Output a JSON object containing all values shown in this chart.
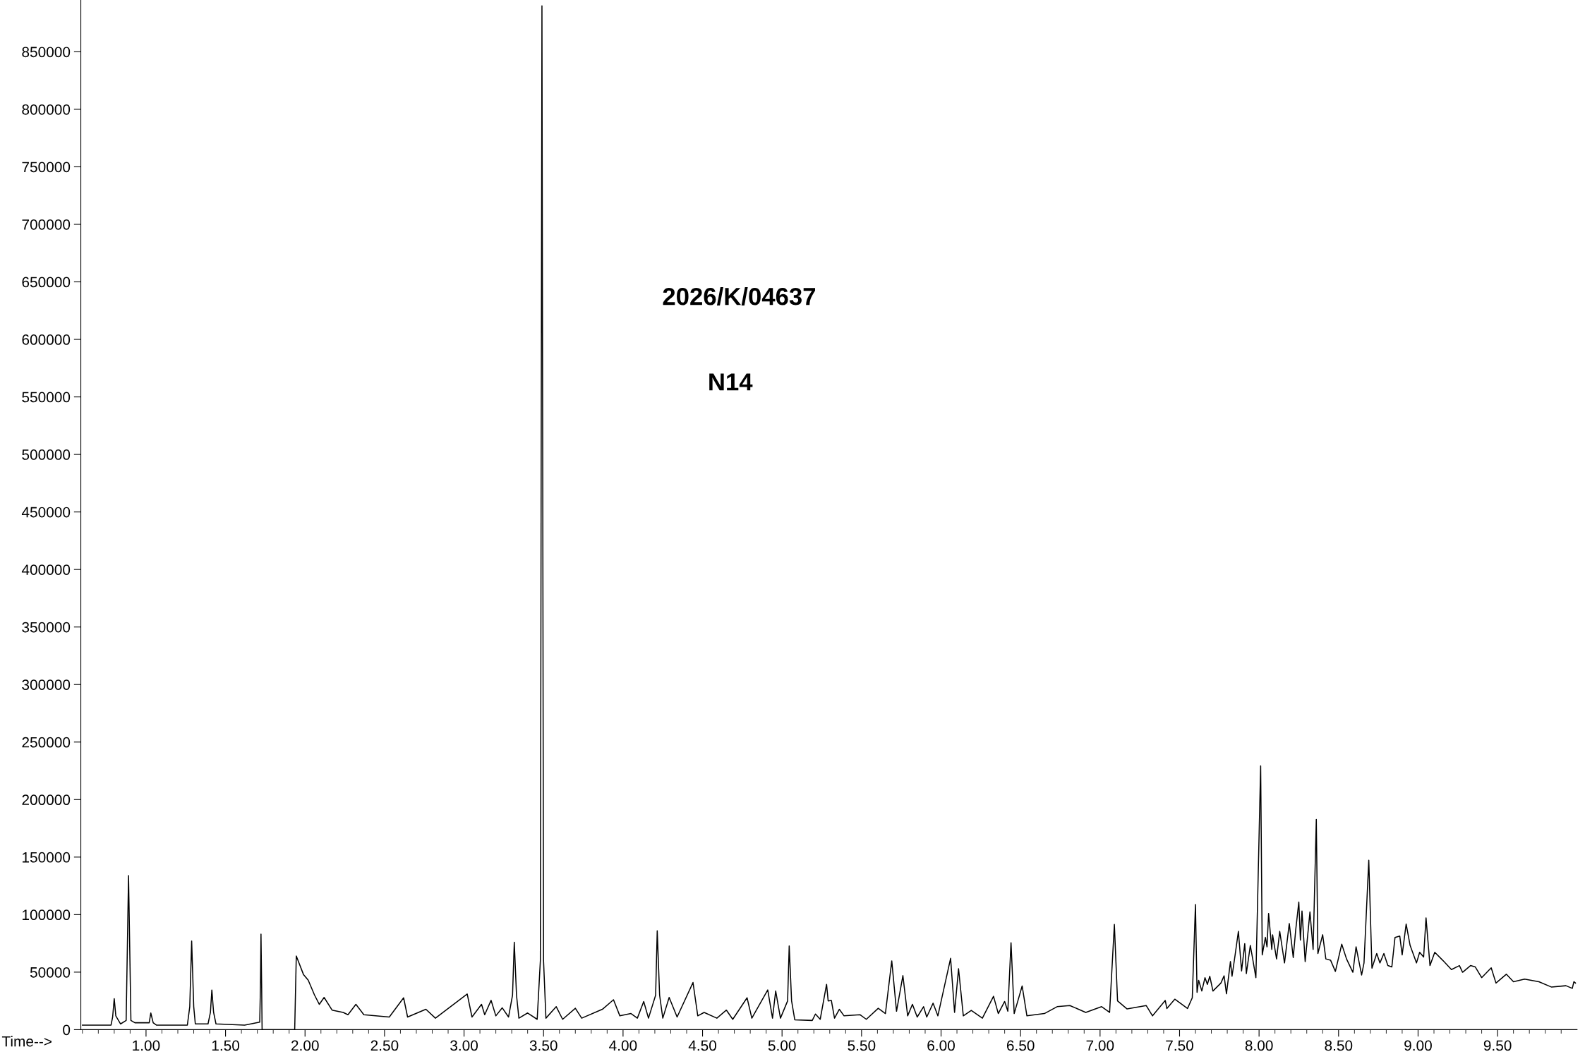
{
  "chart_data": {
    "type": "line",
    "xlabel": "Time-->",
    "annotations": [
      "2026/K/04637",
      "N14"
    ],
    "series": [
      {
        "color": "#000000",
        "x": [
          0.6,
          0.78,
          0.79,
          0.8,
          0.81,
          0.84,
          0.875,
          0.89,
          0.905,
          0.93,
          1.02,
          1.03,
          1.045,
          1.065,
          1.26,
          1.275,
          1.287,
          1.3,
          1.31,
          1.39,
          1.405,
          1.414,
          1.425,
          1.44,
          1.62,
          1.715,
          1.72,
          1.723,
          1.727,
          1.73,
          1.935,
          1.945,
          1.99,
          2.02,
          2.06,
          2.09,
          2.12,
          2.17,
          2.24,
          2.27,
          2.32,
          2.37,
          2.53,
          2.62,
          2.645,
          2.76,
          2.82,
          3.02,
          3.05,
          3.11,
          3.13,
          3.17,
          3.2,
          3.24,
          3.28,
          3.305,
          3.316,
          3.33,
          3.345,
          3.4,
          3.46,
          3.48,
          3.49,
          3.5,
          3.515,
          3.58,
          3.62,
          3.7,
          3.74,
          3.87,
          3.94,
          3.98,
          4.05,
          4.09,
          4.13,
          4.16,
          4.205,
          4.215,
          4.23,
          4.25,
          4.29,
          4.34,
          4.44,
          4.47,
          4.51,
          4.59,
          4.65,
          4.69,
          4.78,
          4.81,
          4.91,
          4.94,
          4.96,
          4.99,
          5.035,
          5.045,
          5.06,
          5.08,
          5.19,
          5.21,
          5.24,
          5.28,
          5.29,
          5.31,
          5.33,
          5.36,
          5.39,
          5.49,
          5.53,
          5.605,
          5.65,
          5.69,
          5.72,
          5.76,
          5.79,
          5.82,
          5.85,
          5.89,
          5.91,
          5.95,
          5.98,
          6.06,
          6.085,
          6.11,
          6.14,
          6.19,
          6.26,
          6.33,
          6.36,
          6.4,
          6.42,
          6.44,
          6.46,
          6.51,
          6.54,
          6.65,
          6.73,
          6.81,
          6.91,
          7.01,
          7.06,
          7.09,
          7.11,
          7.17,
          7.29,
          7.33,
          7.41,
          7.42,
          7.47,
          7.55,
          7.58,
          7.6,
          7.61,
          7.62,
          7.64,
          7.66,
          7.675,
          7.69,
          7.71,
          7.76,
          7.78,
          7.795,
          7.82,
          7.83,
          7.85,
          7.87,
          7.89,
          7.91,
          7.92,
          7.945,
          7.96,
          7.98,
          8.01,
          8.02,
          8.04,
          8.05,
          8.06,
          8.08,
          8.085,
          8.11,
          8.13,
          8.16,
          8.19,
          8.215,
          8.23,
          8.25,
          8.26,
          8.27,
          8.29,
          8.32,
          8.34,
          8.36,
          8.37,
          8.4,
          8.42,
          8.45,
          8.48,
          8.52,
          8.55,
          8.59,
          8.61,
          8.645,
          8.66,
          8.69,
          8.71,
          8.74,
          8.76,
          8.785,
          8.81,
          8.835,
          8.855,
          8.885,
          8.9,
          8.925,
          8.95,
          8.99,
          9.01,
          9.035,
          9.05,
          9.075,
          9.105,
          9.155,
          9.21,
          9.26,
          9.28,
          9.33,
          9.36,
          9.4,
          9.46,
          9.49,
          9.555,
          9.6,
          9.67,
          9.76,
          9.84,
          9.93,
          9.97,
          9.98,
          9.99
        ],
        "values": [
          4000,
          4000,
          11000,
          27000,
          12000,
          5000,
          8000,
          134000,
          8000,
          6000,
          6000,
          14500,
          6000,
          4000,
          4000,
          20000,
          77000,
          20000,
          5000,
          5000,
          15000,
          34500,
          15000,
          5000,
          4000,
          6500,
          40000,
          83000,
          40000,
          0,
          0,
          64000,
          48000,
          43000,
          30000,
          22000,
          28000,
          17000,
          15000,
          13000,
          22000,
          13000,
          11000,
          27700,
          11000,
          17700,
          10000,
          31000,
          11000,
          22000,
          13000,
          25500,
          12000,
          19000,
          11000,
          30000,
          76000,
          30000,
          10000,
          14500,
          9000,
          60000,
          890000,
          60000,
          10000,
          20000,
          9000,
          18600,
          10000,
          17700,
          26000,
          12000,
          14000,
          10000,
          24500,
          10000,
          30000,
          86000,
          30000,
          10000,
          28000,
          11000,
          41000,
          12000,
          15000,
          10000,
          17000,
          9000,
          27700,
          10000,
          34500,
          10000,
          33600,
          10000,
          25000,
          72700,
          25000,
          8600,
          8000,
          13600,
          9000,
          39400,
          25000,
          25400,
          10000,
          17700,
          12000,
          13000,
          9000,
          18600,
          14000,
          59800,
          16000,
          47000,
          12000,
          22000,
          11000,
          20000,
          11000,
          23000,
          12000,
          62000,
          15000,
          53000,
          12000,
          16800,
          10000,
          29000,
          14000,
          24500,
          16000,
          75600,
          14000,
          38000,
          12000,
          14000,
          20000,
          21000,
          15000,
          20000,
          15000,
          91500,
          25000,
          18000,
          21000,
          12000,
          25400,
          18400,
          26500,
          18400,
          27700,
          108800,
          32400,
          42900,
          33600,
          45200,
          39400,
          46400,
          33600,
          40500,
          46800,
          31200,
          59200,
          46400,
          65500,
          85500,
          51000,
          74800,
          48700,
          73200,
          61500,
          45200,
          229300,
          65000,
          80200,
          72000,
          101000,
          69700,
          82500,
          61500,
          85500,
          58000,
          92300,
          62700,
          86000,
          110900,
          77800,
          103200,
          59200,
          102300,
          69700,
          182700,
          66200,
          82500,
          61500,
          60300,
          50600,
          74300,
          61500,
          49900,
          72000,
          47500,
          58000,
          147300,
          53400,
          66200,
          58000,
          66200,
          55700,
          54500,
          80200,
          81300,
          65000,
          91800,
          73200,
          58000,
          67300,
          63100,
          97200,
          55700,
          67300,
          60300,
          52200,
          55700,
          49900,
          55700,
          54500,
          45200,
          53800,
          40500,
          48200,
          41700,
          44000,
          41700,
          37000,
          38200,
          35900,
          41700,
          40500
        ]
      }
    ],
    "xlim": [
      0.59,
      10.0
    ],
    "ylim": [
      0,
      895000
    ],
    "xticks": [
      {
        "value": 0.6,
        "label": null
      },
      {
        "value": 0.7,
        "label": null
      },
      {
        "value": 0.8,
        "label": null
      },
      {
        "value": 0.9,
        "label": null
      },
      {
        "value": 1.0,
        "label": "1.00"
      },
      {
        "value": 1.1,
        "label": null
      },
      {
        "value": 1.2,
        "label": null
      },
      {
        "value": 1.3,
        "label": null
      },
      {
        "value": 1.4,
        "label": null
      },
      {
        "value": 1.5,
        "label": "1.50"
      },
      {
        "value": 1.6,
        "label": null
      },
      {
        "value": 1.7,
        "label": null
      },
      {
        "value": 1.8,
        "label": null
      },
      {
        "value": 1.9,
        "label": null
      },
      {
        "value": 2.0,
        "label": "2.00"
      },
      {
        "value": 2.1,
        "label": null
      },
      {
        "value": 2.2,
        "label": null
      },
      {
        "value": 2.3,
        "label": null
      },
      {
        "value": 2.4,
        "label": null
      },
      {
        "value": 2.5,
        "label": "2.50"
      },
      {
        "value": 2.6,
        "label": null
      },
      {
        "value": 2.7,
        "label": null
      },
      {
        "value": 2.8,
        "label": null
      },
      {
        "value": 2.9,
        "label": null
      },
      {
        "value": 3.0,
        "label": "3.00"
      },
      {
        "value": 3.1,
        "label": null
      },
      {
        "value": 3.2,
        "label": null
      },
      {
        "value": 3.3,
        "label": null
      },
      {
        "value": 3.4,
        "label": null
      },
      {
        "value": 3.5,
        "label": "3.50"
      },
      {
        "value": 3.6,
        "label": null
      },
      {
        "value": 3.7,
        "label": null
      },
      {
        "value": 3.8,
        "label": null
      },
      {
        "value": 3.9,
        "label": null
      },
      {
        "value": 4.0,
        "label": "4.00"
      },
      {
        "value": 4.1,
        "label": null
      },
      {
        "value": 4.2,
        "label": null
      },
      {
        "value": 4.3,
        "label": null
      },
      {
        "value": 4.4,
        "label": null
      },
      {
        "value": 4.5,
        "label": "4.50"
      },
      {
        "value": 4.6,
        "label": null
      },
      {
        "value": 4.7,
        "label": null
      },
      {
        "value": 4.8,
        "label": null
      },
      {
        "value": 4.9,
        "label": null
      },
      {
        "value": 5.0,
        "label": "5.00"
      },
      {
        "value": 5.1,
        "label": null
      },
      {
        "value": 5.2,
        "label": null
      },
      {
        "value": 5.3,
        "label": null
      },
      {
        "value": 5.4,
        "label": null
      },
      {
        "value": 5.5,
        "label": "5.50"
      },
      {
        "value": 5.6,
        "label": null
      },
      {
        "value": 5.7,
        "label": null
      },
      {
        "value": 5.8,
        "label": null
      },
      {
        "value": 5.9,
        "label": null
      },
      {
        "value": 6.0,
        "label": "6.00"
      },
      {
        "value": 6.1,
        "label": null
      },
      {
        "value": 6.2,
        "label": null
      },
      {
        "value": 6.3,
        "label": null
      },
      {
        "value": 6.4,
        "label": null
      },
      {
        "value": 6.5,
        "label": "6.50"
      },
      {
        "value": 6.6,
        "label": null
      },
      {
        "value": 6.7,
        "label": null
      },
      {
        "value": 6.8,
        "label": null
      },
      {
        "value": 6.9,
        "label": null
      },
      {
        "value": 7.0,
        "label": "7.00"
      },
      {
        "value": 7.1,
        "label": null
      },
      {
        "value": 7.2,
        "label": null
      },
      {
        "value": 7.3,
        "label": null
      },
      {
        "value": 7.4,
        "label": null
      },
      {
        "value": 7.5,
        "label": "7.50"
      },
      {
        "value": 7.6,
        "label": null
      },
      {
        "value": 7.7,
        "label": null
      },
      {
        "value": 7.8,
        "label": null
      },
      {
        "value": 7.9,
        "label": null
      },
      {
        "value": 8.0,
        "label": "8.00"
      },
      {
        "value": 8.1,
        "label": null
      },
      {
        "value": 8.2,
        "label": null
      },
      {
        "value": 8.3,
        "label": null
      },
      {
        "value": 8.4,
        "label": null
      },
      {
        "value": 8.5,
        "label": "8.50"
      },
      {
        "value": 8.6,
        "label": null
      },
      {
        "value": 8.7,
        "label": null
      },
      {
        "value": 8.8,
        "label": null
      },
      {
        "value": 8.9,
        "label": null
      },
      {
        "value": 9.0,
        "label": "9.00"
      },
      {
        "value": 9.1,
        "label": null
      },
      {
        "value": 9.2,
        "label": null
      },
      {
        "value": 9.3,
        "label": null
      },
      {
        "value": 9.4,
        "label": null
      },
      {
        "value": 9.5,
        "label": "9.50"
      },
      {
        "value": 9.6,
        "label": null
      },
      {
        "value": 9.7,
        "label": null
      },
      {
        "value": 9.8,
        "label": null
      },
      {
        "value": 9.9,
        "label": null
      }
    ],
    "yticks": [
      0,
      50000,
      100000,
      150000,
      200000,
      250000,
      300000,
      350000,
      400000,
      450000,
      500000,
      550000,
      600000,
      650000,
      700000,
      750000,
      800000,
      850000
    ],
    "grid": false,
    "legend": false,
    "marker": "none",
    "line_style": "solid"
  }
}
